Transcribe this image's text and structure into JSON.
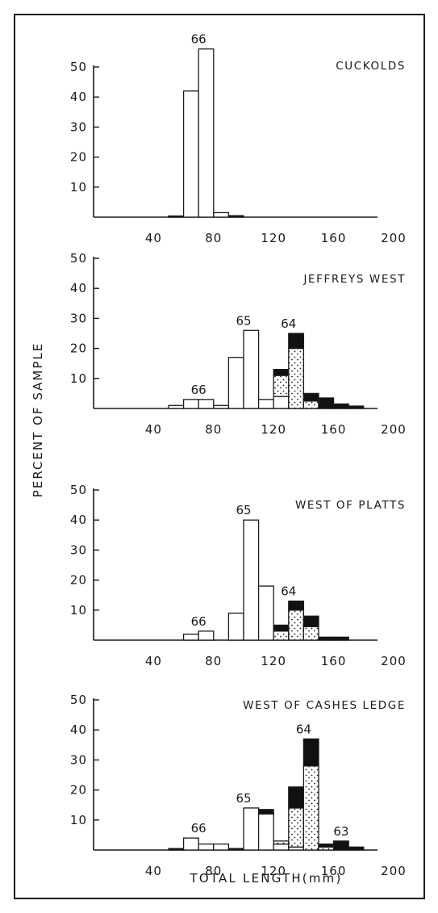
{
  "figure": {
    "ylabel": "PERCENT OF SAMPLE",
    "xlabel": "TOTAL LENGTH(mm)"
  },
  "legend_fills": {
    "open": "#ffffff",
    "stippled": "stipple",
    "solid": "#111111"
  },
  "chart_data": [
    {
      "type": "bar",
      "title": "CUCKOLDS",
      "xlim": [
        0,
        200
      ],
      "ylim": [
        0,
        55
      ],
      "x_ticks": [
        40,
        80,
        120,
        160,
        200
      ],
      "y_ticks": [
        10,
        20,
        30,
        40,
        50
      ],
      "bin_width": 10,
      "bars": [
        {
          "x": 50,
          "segments": [
            {
              "fill": "solid",
              "value": 0.4
            }
          ]
        },
        {
          "x": 60,
          "segments": [
            {
              "fill": "open",
              "value": 42
            }
          ]
        },
        {
          "x": 70,
          "segments": [
            {
              "fill": "open",
              "value": 56
            }
          ]
        },
        {
          "x": 80,
          "segments": [
            {
              "fill": "open",
              "value": 1.5
            }
          ]
        },
        {
          "x": 90,
          "segments": [
            {
              "fill": "solid",
              "value": 0.5
            }
          ]
        }
      ],
      "annotations": [
        {
          "text": "66",
          "x": 70,
          "y": 56
        }
      ]
    },
    {
      "type": "bar",
      "title": "JEFFREYS WEST",
      "xlim": [
        0,
        200
      ],
      "ylim": [
        0,
        50
      ],
      "x_ticks": [
        40,
        80,
        120,
        160,
        200
      ],
      "y_ticks": [
        10,
        20,
        30,
        40,
        50
      ],
      "bin_width": 10,
      "bars": [
        {
          "x": 50,
          "segments": [
            {
              "fill": "open",
              "value": 1
            }
          ]
        },
        {
          "x": 60,
          "segments": [
            {
              "fill": "open",
              "value": 3
            }
          ]
        },
        {
          "x": 70,
          "segments": [
            {
              "fill": "open",
              "value": 3
            }
          ]
        },
        {
          "x": 80,
          "segments": [
            {
              "fill": "open",
              "value": 1
            }
          ]
        },
        {
          "x": 90,
          "segments": [
            {
              "fill": "open",
              "value": 17
            }
          ]
        },
        {
          "x": 100,
          "segments": [
            {
              "fill": "open",
              "value": 26
            }
          ]
        },
        {
          "x": 110,
          "segments": [
            {
              "fill": "open",
              "value": 3
            }
          ]
        },
        {
          "x": 120,
          "segments": [
            {
              "fill": "open",
              "value": 4
            },
            {
              "fill": "stippled",
              "value": 7
            },
            {
              "fill": "solid",
              "value": 2
            }
          ]
        },
        {
          "x": 130,
          "segments": [
            {
              "fill": "stippled",
              "value": 20
            },
            {
              "fill": "solid",
              "value": 5
            }
          ]
        },
        {
          "x": 140,
          "segments": [
            {
              "fill": "stippled",
              "value": 2.5
            },
            {
              "fill": "solid",
              "value": 2.5
            }
          ]
        },
        {
          "x": 150,
          "segments": [
            {
              "fill": "solid",
              "value": 3.5
            }
          ]
        },
        {
          "x": 160,
          "segments": [
            {
              "fill": "solid",
              "value": 1.5
            }
          ]
        },
        {
          "x": 170,
          "segments": [
            {
              "fill": "solid",
              "value": 0.8
            }
          ]
        }
      ],
      "annotations": [
        {
          "text": "66",
          "x": 70,
          "y": 3
        },
        {
          "text": "65",
          "x": 100,
          "y": 26
        },
        {
          "text": "64",
          "x": 130,
          "y": 25
        }
      ]
    },
    {
      "type": "bar",
      "title": "WEST OF PLATTS",
      "xlim": [
        0,
        200
      ],
      "ylim": [
        0,
        50
      ],
      "x_ticks": [
        40,
        80,
        120,
        160,
        200
      ],
      "y_ticks": [
        10,
        20,
        30,
        40,
        50
      ],
      "bin_width": 10,
      "bars": [
        {
          "x": 60,
          "segments": [
            {
              "fill": "open",
              "value": 2
            }
          ]
        },
        {
          "x": 70,
          "segments": [
            {
              "fill": "open",
              "value": 3
            }
          ]
        },
        {
          "x": 90,
          "segments": [
            {
              "fill": "open",
              "value": 9
            }
          ]
        },
        {
          "x": 100,
          "segments": [
            {
              "fill": "open",
              "value": 40
            }
          ]
        },
        {
          "x": 110,
          "segments": [
            {
              "fill": "open",
              "value": 18
            }
          ]
        },
        {
          "x": 120,
          "segments": [
            {
              "fill": "stippled",
              "value": 3
            },
            {
              "fill": "solid",
              "value": 2
            }
          ]
        },
        {
          "x": 130,
          "segments": [
            {
              "fill": "stippled",
              "value": 10
            },
            {
              "fill": "solid",
              "value": 3
            }
          ]
        },
        {
          "x": 140,
          "segments": [
            {
              "fill": "stippled",
              "value": 4.5
            },
            {
              "fill": "solid",
              "value": 3.5
            }
          ]
        },
        {
          "x": 150,
          "segments": [
            {
              "fill": "solid",
              "value": 1
            }
          ]
        },
        {
          "x": 160,
          "segments": [
            {
              "fill": "solid",
              "value": 1
            }
          ]
        }
      ],
      "annotations": [
        {
          "text": "66",
          "x": 70,
          "y": 3
        },
        {
          "text": "65",
          "x": 100,
          "y": 40
        },
        {
          "text": "64",
          "x": 130,
          "y": 13
        }
      ]
    },
    {
      "type": "bar",
      "title": "WEST OF CASHES LEDGE",
      "xlim": [
        0,
        200
      ],
      "ylim": [
        0,
        50
      ],
      "x_ticks": [
        40,
        80,
        120,
        160,
        200
      ],
      "y_ticks": [
        10,
        20,
        30,
        40,
        50
      ],
      "bin_width": 10,
      "bars": [
        {
          "x": 50,
          "segments": [
            {
              "fill": "solid",
              "value": 0.5
            }
          ]
        },
        {
          "x": 60,
          "segments": [
            {
              "fill": "open",
              "value": 4
            }
          ]
        },
        {
          "x": 70,
          "segments": [
            {
              "fill": "open",
              "value": 2
            }
          ]
        },
        {
          "x": 80,
          "segments": [
            {
              "fill": "open",
              "value": 2
            }
          ]
        },
        {
          "x": 90,
          "segments": [
            {
              "fill": "solid",
              "value": 0.5
            }
          ]
        },
        {
          "x": 100,
          "segments": [
            {
              "fill": "open",
              "value": 14
            }
          ]
        },
        {
          "x": 110,
          "segments": [
            {
              "fill": "open",
              "value": 12
            },
            {
              "fill": "solid",
              "value": 1.5
            }
          ]
        },
        {
          "x": 120,
          "segments": [
            {
              "fill": "open",
              "value": 2
            },
            {
              "fill": "stippled",
              "value": 1
            }
          ]
        },
        {
          "x": 130,
          "segments": [
            {
              "fill": "open",
              "value": 1
            },
            {
              "fill": "stippled",
              "value": 13
            },
            {
              "fill": "solid",
              "value": 7
            }
          ]
        },
        {
          "x": 140,
          "segments": [
            {
              "fill": "stippled",
              "value": 28
            },
            {
              "fill": "solid",
              "value": 9
            }
          ]
        },
        {
          "x": 150,
          "segments": [
            {
              "fill": "stippled",
              "value": 1
            },
            {
              "fill": "solid",
              "value": 1
            }
          ]
        },
        {
          "x": 160,
          "segments": [
            {
              "fill": "solid",
              "value": 3
            }
          ]
        },
        {
          "x": 170,
          "segments": [
            {
              "fill": "solid",
              "value": 1
            }
          ]
        }
      ],
      "annotations": [
        {
          "text": "66",
          "x": 70,
          "y": 4
        },
        {
          "text": "65",
          "x": 100,
          "y": 14
        },
        {
          "text": "64",
          "x": 140,
          "y": 37
        },
        {
          "text": "63",
          "x": 165,
          "y": 3
        }
      ]
    }
  ]
}
